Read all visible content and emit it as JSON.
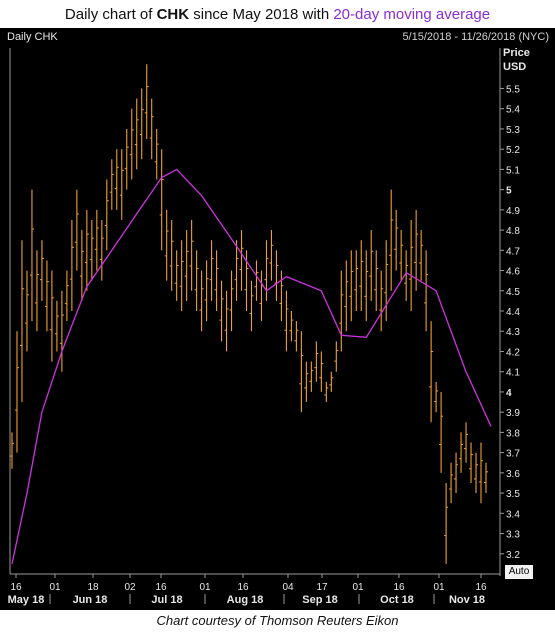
{
  "title_parts": {
    "prefix": "Daily chart of ",
    "ticker": "CHK",
    "middle": " since May 2018 with ",
    "ma": "20-day moving average"
  },
  "panel": {
    "left_label": "Daily CHK",
    "range_label": "5/15/2018 - 11/26/2018 (NYC)",
    "auto_label": "Auto"
  },
  "caption": "Chart courtesy of Thomson Reuters Eikon",
  "colors": {
    "background": "#000000",
    "price_bars": "#f0a030",
    "moving_average": "#cc33dd",
    "axis": "#9a9a9a",
    "tick_text": "#e8e8e8"
  },
  "chart_data": {
    "type": "ohlc",
    "ylabel": "Price",
    "yunit": "USD",
    "ylim": [
      3.1,
      5.7
    ],
    "yticks": [
      3.2,
      3.3,
      3.4,
      3.5,
      3.6,
      3.7,
      3.8,
      3.9,
      4,
      4.1,
      4.2,
      4.3,
      4.4,
      4.5,
      4.6,
      4.7,
      4.8,
      4.9,
      5,
      5.1,
      5.2,
      5.3,
      5.4,
      5.5
    ],
    "ytick_bold": [
      4,
      5
    ],
    "day_ticks": [
      "16",
      "01",
      "18",
      "02",
      "16",
      "01",
      "16",
      "04",
      "17",
      "01",
      "16",
      "01",
      "16"
    ],
    "month_labels": [
      "May 18",
      "Jun 18",
      "Jul 18",
      "Aug 18",
      "Sep 18",
      "Oct 18",
      "Nov 18"
    ],
    "series": [
      {
        "name": "CHK daily range",
        "values": [
          [
            3.62,
            3.8
          ],
          [
            3.7,
            4.3
          ],
          [
            3.95,
            4.75
          ],
          [
            4.2,
            4.6
          ],
          [
            4.35,
            5.0
          ],
          [
            4.3,
            4.7
          ],
          [
            4.45,
            4.75
          ],
          [
            4.3,
            4.65
          ],
          [
            4.15,
            4.6
          ],
          [
            4.2,
            4.45
          ],
          [
            4.1,
            4.5
          ],
          [
            4.35,
            4.6
          ],
          [
            4.4,
            4.85
          ],
          [
            4.6,
            5.0
          ],
          [
            4.45,
            4.8
          ],
          [
            4.5,
            4.9
          ],
          [
            4.55,
            4.85
          ],
          [
            4.6,
            4.9
          ],
          [
            4.55,
            4.85
          ],
          [
            4.7,
            5.05
          ],
          [
            4.9,
            5.15
          ],
          [
            4.9,
            5.2
          ],
          [
            4.85,
            5.2
          ],
          [
            5.0,
            5.3
          ],
          [
            5.05,
            5.4
          ],
          [
            5.1,
            5.45
          ],
          [
            5.15,
            5.5
          ],
          [
            5.25,
            5.62
          ],
          [
            5.15,
            5.45
          ],
          [
            5.05,
            5.3
          ],
          [
            4.7,
            5.2
          ],
          [
            4.55,
            4.9
          ],
          [
            4.5,
            4.85
          ],
          [
            4.45,
            4.7
          ],
          [
            4.4,
            4.75
          ],
          [
            4.45,
            4.8
          ],
          [
            4.5,
            4.85
          ],
          [
            4.4,
            4.7
          ],
          [
            4.3,
            4.6
          ],
          [
            4.35,
            4.65
          ],
          [
            4.45,
            4.75
          ],
          [
            4.4,
            4.7
          ],
          [
            4.25,
            4.55
          ],
          [
            4.2,
            4.5
          ],
          [
            4.3,
            4.6
          ],
          [
            4.45,
            4.75
          ],
          [
            4.5,
            4.8
          ],
          [
            4.4,
            4.7
          ],
          [
            4.3,
            4.55
          ],
          [
            4.45,
            4.65
          ],
          [
            4.35,
            4.6
          ],
          [
            4.45,
            4.75
          ],
          [
            4.55,
            4.8
          ],
          [
            4.45,
            4.7
          ],
          [
            4.35,
            4.6
          ],
          [
            4.2,
            4.5
          ],
          [
            4.25,
            4.4
          ],
          [
            4.2,
            4.35
          ],
          [
            3.9,
            4.3
          ],
          [
            3.95,
            4.15
          ],
          [
            4.0,
            4.15
          ],
          [
            4.05,
            4.25
          ],
          [
            4.0,
            4.2
          ],
          [
            3.95,
            4.05
          ],
          [
            4.0,
            4.1
          ],
          [
            4.1,
            4.25
          ],
          [
            4.2,
            4.6
          ],
          [
            4.3,
            4.65
          ],
          [
            4.35,
            4.7
          ],
          [
            4.4,
            4.7
          ],
          [
            4.4,
            4.75
          ],
          [
            4.35,
            4.7
          ],
          [
            4.45,
            4.8
          ],
          [
            4.4,
            4.7
          ],
          [
            4.3,
            4.6
          ],
          [
            4.35,
            4.75
          ],
          [
            4.5,
            5.0
          ],
          [
            4.6,
            4.9
          ],
          [
            4.55,
            4.8
          ],
          [
            4.45,
            4.7
          ],
          [
            4.4,
            4.85
          ],
          [
            4.5,
            4.9
          ],
          [
            4.55,
            4.8
          ],
          [
            4.3,
            4.7
          ],
          [
            3.85,
            4.35
          ],
          [
            3.9,
            4.05
          ],
          [
            3.6,
            4.0
          ],
          [
            3.15,
            3.55
          ],
          [
            3.45,
            3.65
          ],
          [
            3.5,
            3.7
          ],
          [
            3.6,
            3.8
          ],
          [
            3.65,
            3.85
          ],
          [
            3.55,
            3.75
          ],
          [
            3.5,
            3.7
          ],
          [
            3.45,
            3.75
          ],
          [
            3.5,
            3.65
          ]
        ]
      },
      {
        "name": "20-day moving average",
        "x": [
          0,
          3,
          6,
          10,
          15,
          20,
          25,
          30,
          33,
          38,
          45,
          51,
          55,
          62,
          66,
          71,
          79,
          85,
          91,
          96
        ],
        "values": [
          3.15,
          3.5,
          3.9,
          4.2,
          4.52,
          4.7,
          4.88,
          5.06,
          5.1,
          4.97,
          4.72,
          4.5,
          4.57,
          4.5,
          4.28,
          4.27,
          4.59,
          4.5,
          4.1,
          3.83
        ]
      }
    ]
  }
}
